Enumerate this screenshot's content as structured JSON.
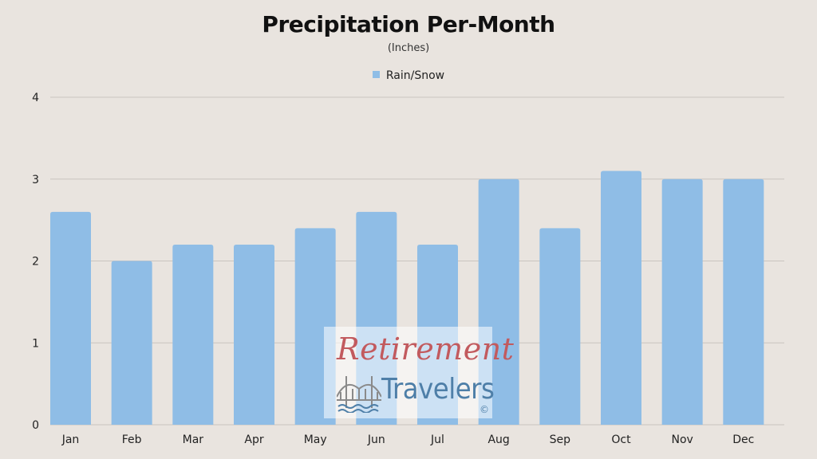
{
  "chart_data": {
    "type": "bar",
    "title": "Precipitation Per-Month",
    "subtitle": "(Inches)",
    "categories": [
      "Jan",
      "Feb",
      "Mar",
      "Apr",
      "May",
      "Jun",
      "Jul",
      "Aug",
      "Sep",
      "Oct",
      "Nov",
      "Dec"
    ],
    "series": [
      {
        "name": "Rain/Snow",
        "values": [
          2.6,
          2.0,
          2.2,
          2.2,
          2.4,
          2.6,
          2.2,
          3.0,
          2.4,
          3.1,
          3.0,
          3.0
        ],
        "color": "#8fbde6"
      }
    ],
    "ylim": [
      0,
      4
    ],
    "yticks": [
      "0",
      "1",
      "2",
      "3",
      "4"
    ],
    "grid": true,
    "legend_position": "top-center"
  },
  "watermark": {
    "line1": "Retirement",
    "line2": "Travelers",
    "copyright": "©",
    "icon": "bridge-icon"
  },
  "colors": {
    "background": "#e9e4df",
    "gridline": "#c9c4bf"
  }
}
